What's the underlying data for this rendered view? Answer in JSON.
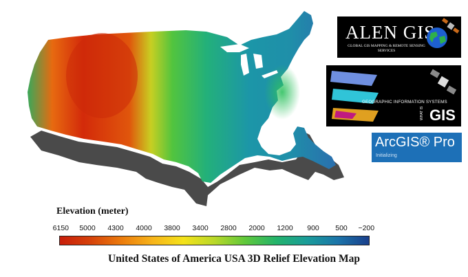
{
  "legend": {
    "title": "Elevation (meter)",
    "ticks": [
      "6150",
      "5000",
      "4300",
      "4000",
      "3800",
      "3400",
      "2800",
      "2000",
      "1200",
      "900",
      "500",
      "−200"
    ],
    "colors": [
      "#c81e0a",
      "#d6420a",
      "#ec7c0c",
      "#f7b41a",
      "#f4e21a",
      "#b9d829",
      "#5fc83b",
      "#23b36b",
      "#1a9c9a",
      "#1b74a9",
      "#1a3f8c"
    ]
  },
  "caption": "United States of America USA 3D Relief Elevation Map",
  "logos": {
    "alen": {
      "title": "ALEN GIS",
      "subtitle": "GLOBAL GIS MAPPING & REMOTE SENSING SERVICES"
    },
    "wgis": {
      "title": "GEOGRAPHIC INFORMATION SYSTEMS",
      "what": "WHAT IS",
      "gis": "GIS"
    },
    "arcgis": {
      "title": "ArcGIS® Pro",
      "status": "Initializing"
    }
  }
}
